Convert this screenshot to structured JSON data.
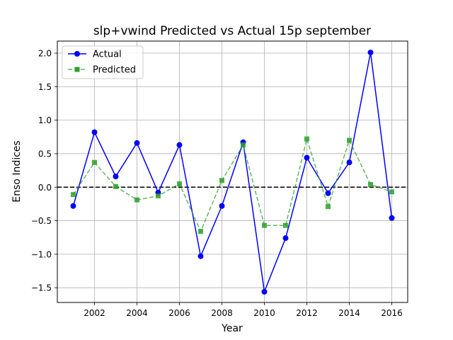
{
  "chart_data": {
    "type": "line",
    "title": "slp+vwind Predicted vs Actual 15p september",
    "xlabel": "Year",
    "ylabel": "Enso Indices",
    "x": [
      2001,
      2002,
      2003,
      2004,
      2005,
      2006,
      2007,
      2008,
      2009,
      2010,
      2011,
      2012,
      2013,
      2014,
      2015,
      2016
    ],
    "xlim": [
      2000.25,
      2016.75
    ],
    "ylim": [
      -1.72,
      2.18
    ],
    "xticks": [
      2002,
      2004,
      2006,
      2008,
      2010,
      2012,
      2014,
      2016
    ],
    "yticks": [
      -1.5,
      -1.0,
      -0.5,
      0.0,
      0.5,
      1.0,
      1.5,
      2.0
    ],
    "xtick_labels": [
      "2002",
      "2004",
      "2006",
      "2008",
      "2010",
      "2012",
      "2014",
      "2016"
    ],
    "ytick_labels": [
      "−1.5",
      "−1.0",
      "−0.5",
      "0.0",
      "0.5",
      "1.0",
      "1.5",
      "2.0"
    ],
    "grid": true,
    "reference_line": {
      "y": 0.0,
      "color": "#000000",
      "style": "dashed"
    },
    "legend": {
      "placement": "top-left"
    },
    "series": [
      {
        "name": "Actual",
        "color": "#0000ff",
        "linestyle": "solid",
        "marker": "circle",
        "values": [
          -0.28,
          0.82,
          0.16,
          0.66,
          -0.08,
          0.63,
          -1.03,
          -0.28,
          0.67,
          -1.56,
          -0.76,
          0.44,
          -0.09,
          0.37,
          2.01,
          -0.46
        ]
      },
      {
        "name": "Predicted",
        "color": "#2ca02c",
        "linestyle": "dashed",
        "marker": "square",
        "values": [
          -0.11,
          0.37,
          0.01,
          -0.19,
          -0.13,
          0.05,
          -0.66,
          0.1,
          0.63,
          -0.57,
          -0.57,
          0.72,
          -0.29,
          0.7,
          0.04,
          -0.07
        ]
      }
    ]
  }
}
